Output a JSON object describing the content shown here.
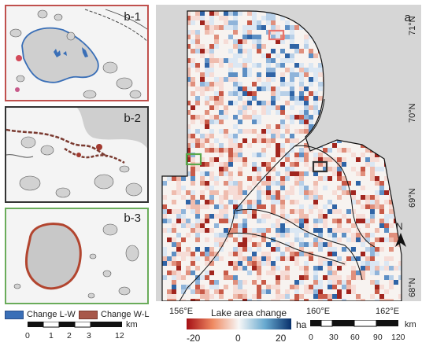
{
  "main_map": {
    "label": "a",
    "lat_ticks": [
      "71°N",
      "70°N",
      "69°N",
      "68°N"
    ],
    "lon_ticks": [
      "156°E",
      "160°E",
      "162°E"
    ],
    "north_arrow": "N",
    "highlight_colors": {
      "red": "#e8736e",
      "green": "#5aa84a",
      "dark": "#333333"
    }
  },
  "insets": [
    {
      "label": "b-1",
      "frame_color": "#c0504d"
    },
    {
      "label": "b-2",
      "frame_color": "#333333"
    },
    {
      "label": "b-3",
      "frame_color": "#6aac5a"
    }
  ],
  "colorbar": {
    "title": "Lake area change",
    "unit": "ha",
    "ticks": [
      "-20",
      "0",
      "20"
    ],
    "colors": [
      "#a50f15",
      "#f7f7f7",
      "#08306b"
    ]
  },
  "legend": {
    "items": [
      {
        "label": "Change L-W",
        "color": "#3a6fb7"
      },
      {
        "label": "Change W-L",
        "color": "#a8584a"
      }
    ]
  },
  "scalebar_left": {
    "ticks": [
      "0",
      "1",
      "2",
      "3",
      "12"
    ],
    "unit": "km"
  },
  "scalebar_right": {
    "ticks": [
      "0",
      "30",
      "60",
      "90",
      "120"
    ],
    "unit": "km"
  }
}
